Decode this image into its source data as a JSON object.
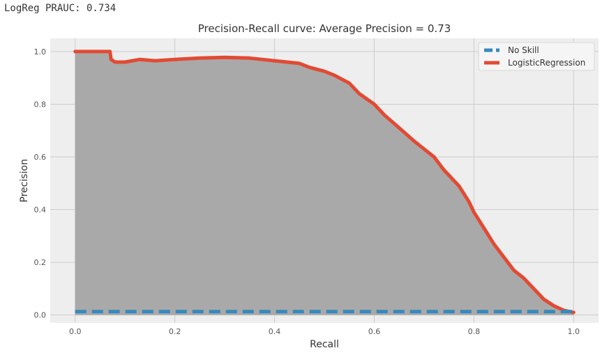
{
  "console": {
    "output": "LogReg PRAUC: 0.734"
  },
  "colors": {
    "no_skill": "#348abd",
    "logistic": "#e24a33",
    "fill": "#a9a9a9",
    "plot_bg": "#eeeeee",
    "grid": "#cccccc"
  },
  "chart_data": {
    "type": "line",
    "title": "Precision-Recall curve: Average Precision = 0.73",
    "xlabel": "Recall",
    "ylabel": "Precision",
    "xlim": [
      -0.05,
      1.05
    ],
    "ylim": [
      -0.03,
      1.05
    ],
    "xticks": [
      "0.0",
      "0.2",
      "0.4",
      "0.6",
      "0.8",
      "1.0"
    ],
    "yticks": [
      "0.0",
      "0.2",
      "0.4",
      "0.6",
      "0.8",
      "1.0"
    ],
    "grid": true,
    "legend_position": "top-right",
    "series": [
      {
        "name": "No Skill",
        "style": "dashed",
        "x": [
          0,
          1
        ],
        "y": [
          0.013,
          0.013
        ]
      },
      {
        "name": "LogisticRegression",
        "style": "solid",
        "filled": true,
        "x": [
          0,
          0.07,
          0.072,
          0.08,
          0.1,
          0.13,
          0.16,
          0.2,
          0.25,
          0.3,
          0.35,
          0.4,
          0.45,
          0.47,
          0.5,
          0.52,
          0.55,
          0.57,
          0.6,
          0.62,
          0.65,
          0.68,
          0.7,
          0.72,
          0.74,
          0.75,
          0.77,
          0.79,
          0.8,
          0.82,
          0.84,
          0.86,
          0.88,
          0.9,
          0.92,
          0.94,
          0.96,
          0.98,
          1.0
        ],
        "y": [
          1.0,
          1.0,
          0.97,
          0.96,
          0.96,
          0.97,
          0.965,
          0.97,
          0.975,
          0.978,
          0.975,
          0.965,
          0.955,
          0.94,
          0.925,
          0.91,
          0.88,
          0.84,
          0.8,
          0.76,
          0.71,
          0.66,
          0.63,
          0.6,
          0.55,
          0.53,
          0.49,
          0.43,
          0.39,
          0.33,
          0.27,
          0.22,
          0.17,
          0.14,
          0.1,
          0.06,
          0.035,
          0.018,
          0.01
        ]
      }
    ]
  }
}
